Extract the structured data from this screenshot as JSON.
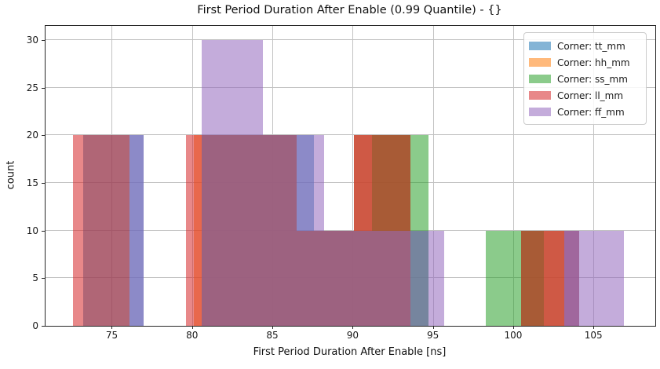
{
  "title": "First Period Duration After Enable (0.99 Quantile) - {}",
  "chart_data": {
    "type": "bar",
    "subtype": "overlaid-histograms",
    "title": "First Period Duration After Enable (0.99 Quantile) - {}",
    "xlabel": "First Period Duration After Enable [ns]",
    "ylabel": "count",
    "xlim": [
      70.87,
      108.85
    ],
    "ylim": [
      0,
      31.5
    ],
    "xticks": [
      75,
      80,
      85,
      90,
      95,
      100,
      105
    ],
    "yticks": [
      0,
      5,
      10,
      15,
      20,
      25,
      30
    ],
    "grid": true,
    "legend_position": "upper-right",
    "bar_alpha": 0.55,
    "series": [
      {
        "name": "Corner: tt_mm",
        "color": "#1f77b4",
        "bars": [
          {
            "x0": 73.2,
            "x1": 77.0,
            "count": 20
          },
          {
            "x0": 80.6,
            "x1": 87.6,
            "count": 20
          },
          {
            "x0": 87.6,
            "x1": 90.1,
            "count": 10
          },
          {
            "x0": 90.1,
            "x1": 93.6,
            "count": 20
          },
          {
            "x0": 93.6,
            "x1": 94.7,
            "count": 10
          },
          {
            "x0": 100.5,
            "x1": 104.1,
            "count": 10
          }
        ]
      },
      {
        "name": "Corner: hh_mm",
        "color": "#ff7f0e",
        "bars": [
          {
            "x0": 80.1,
            "x1": 86.5,
            "count": 20
          },
          {
            "x0": 86.5,
            "x1": 90.1,
            "count": 10
          },
          {
            "x0": 90.1,
            "x1": 93.6,
            "count": 20
          },
          {
            "x0": 100.5,
            "x1": 103.2,
            "count": 10
          }
        ]
      },
      {
        "name": "Corner: ss_mm",
        "color": "#2ca02c",
        "bars": [
          {
            "x0": 80.6,
            "x1": 86.5,
            "count": 20
          },
          {
            "x0": 86.5,
            "x1": 91.2,
            "count": 10
          },
          {
            "x0": 91.2,
            "x1": 94.7,
            "count": 20
          },
          {
            "x0": 98.3,
            "x1": 101.9,
            "count": 10
          }
        ]
      },
      {
        "name": "Corner: ll_mm",
        "color": "#d62728",
        "bars": [
          {
            "x0": 72.6,
            "x1": 76.1,
            "count": 20
          },
          {
            "x0": 79.6,
            "x1": 86.5,
            "count": 20
          },
          {
            "x0": 86.5,
            "x1": 90.1,
            "count": 10
          },
          {
            "x0": 90.1,
            "x1": 93.6,
            "count": 20
          },
          {
            "x0": 100.5,
            "x1": 104.1,
            "count": 10
          }
        ]
      },
      {
        "name": "Corner: ff_mm",
        "color": "#9467bd",
        "bars": [
          {
            "x0": 76.1,
            "x1": 77.0,
            "count": 20
          },
          {
            "x0": 80.6,
            "x1": 84.4,
            "count": 30
          },
          {
            "x0": 84.4,
            "x1": 88.2,
            "count": 20
          },
          {
            "x0": 88.2,
            "x1": 95.7,
            "count": 10
          },
          {
            "x0": 103.2,
            "x1": 106.9,
            "count": 10
          }
        ]
      }
    ]
  }
}
